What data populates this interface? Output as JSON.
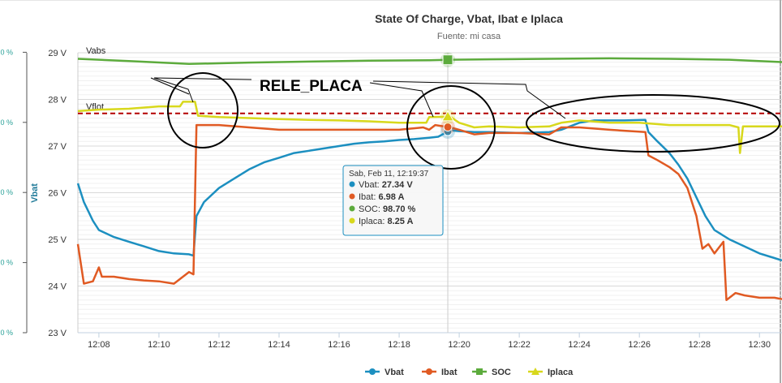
{
  "chart_data": {
    "type": "line",
    "title": "State Of Charge, Vbat, Ibat e Iplaca",
    "subtitle": "Fuente: mi casa",
    "y_axis_title": "Vbat",
    "y_ticks": [
      "23 V",
      "24 V",
      "25 V",
      "26 V",
      "27 V",
      "28 V",
      "29 V"
    ],
    "ylim": [
      23,
      29
    ],
    "secondary_y_ticks": [
      "0 %",
      "0 %",
      "0 %",
      "0 %",
      "0 %",
      "0 %"
    ],
    "x_ticks": [
      "12:08",
      "12:10",
      "12:12",
      "12:14",
      "12:16",
      "12:18",
      "12:20",
      "12:22",
      "12:24",
      "12:26",
      "12:28",
      "12:30"
    ],
    "xlim": [
      7.3,
      30.75
    ],
    "x_unit": "minutes after 12:00",
    "plot_lines": [
      {
        "label": "Vabs",
        "value": 28.9,
        "color": "#555555"
      },
      {
        "label": "Vflot",
        "value": 27.7,
        "color": "#b30000",
        "dashed": true
      }
    ],
    "annotation": "RELE_PLACA",
    "series": [
      {
        "name": "Vbat",
        "color": "#1c8fc0",
        "points": [
          [
            7.3,
            26.2
          ],
          [
            7.5,
            25.8
          ],
          [
            7.8,
            25.4
          ],
          [
            8.0,
            25.2
          ],
          [
            8.5,
            25.05
          ],
          [
            9.0,
            24.95
          ],
          [
            9.5,
            24.85
          ],
          [
            10.0,
            24.75
          ],
          [
            10.5,
            24.7
          ],
          [
            11.0,
            24.68
          ],
          [
            11.15,
            24.65
          ],
          [
            11.25,
            25.5
          ],
          [
            11.5,
            25.8
          ],
          [
            12.0,
            26.1
          ],
          [
            12.5,
            26.3
          ],
          [
            13.0,
            26.5
          ],
          [
            13.5,
            26.65
          ],
          [
            14.0,
            26.75
          ],
          [
            14.5,
            26.85
          ],
          [
            15.0,
            26.9
          ],
          [
            15.5,
            26.95
          ],
          [
            16.0,
            27.0
          ],
          [
            16.5,
            27.05
          ],
          [
            17.0,
            27.08
          ],
          [
            17.5,
            27.1
          ],
          [
            18.0,
            27.13
          ],
          [
            18.5,
            27.15
          ],
          [
            19.0,
            27.18
          ],
          [
            19.3,
            27.2
          ],
          [
            19.7,
            27.34
          ],
          [
            20.0,
            27.32
          ],
          [
            20.5,
            27.3
          ],
          [
            21.0,
            27.3
          ],
          [
            22.0,
            27.28
          ],
          [
            23.0,
            27.3
          ],
          [
            23.4,
            27.35
          ],
          [
            24.0,
            27.5
          ],
          [
            24.5,
            27.55
          ],
          [
            25.0,
            27.55
          ],
          [
            25.5,
            27.55
          ],
          [
            26.2,
            27.56
          ],
          [
            26.3,
            27.3
          ],
          [
            26.6,
            27.1
          ],
          [
            27.0,
            26.85
          ],
          [
            27.3,
            26.6
          ],
          [
            27.6,
            26.3
          ],
          [
            27.9,
            25.9
          ],
          [
            28.2,
            25.5
          ],
          [
            28.5,
            25.2
          ],
          [
            29.0,
            25.0
          ],
          [
            29.5,
            24.85
          ],
          [
            30.0,
            24.7
          ],
          [
            30.5,
            24.6
          ],
          [
            30.75,
            24.55
          ]
        ]
      },
      {
        "name": "Ibat",
        "color": "#e05a23",
        "points": [
          [
            7.3,
            24.9
          ],
          [
            7.5,
            24.05
          ],
          [
            7.8,
            24.1
          ],
          [
            8.0,
            24.4
          ],
          [
            8.1,
            24.2
          ],
          [
            8.5,
            24.2
          ],
          [
            9.0,
            24.15
          ],
          [
            9.5,
            24.12
          ],
          [
            10.0,
            24.1
          ],
          [
            10.5,
            24.05
          ],
          [
            11.0,
            24.3
          ],
          [
            11.15,
            24.25
          ],
          [
            11.25,
            27.45
          ],
          [
            11.5,
            27.45
          ],
          [
            12.0,
            27.45
          ],
          [
            13.0,
            27.4
          ],
          [
            14.0,
            27.35
          ],
          [
            15.0,
            27.35
          ],
          [
            16.0,
            27.35
          ],
          [
            17.0,
            27.35
          ],
          [
            18.0,
            27.35
          ],
          [
            18.8,
            27.4
          ],
          [
            19.0,
            27.35
          ],
          [
            19.2,
            27.45
          ],
          [
            19.7,
            27.4
          ],
          [
            20.0,
            27.35
          ],
          [
            20.5,
            27.25
          ],
          [
            21.0,
            27.28
          ],
          [
            22.0,
            27.28
          ],
          [
            23.0,
            27.25
          ],
          [
            23.4,
            27.4
          ],
          [
            24.0,
            27.4
          ],
          [
            25.0,
            27.35
          ],
          [
            26.2,
            27.3
          ],
          [
            26.3,
            26.8
          ],
          [
            26.6,
            26.7
          ],
          [
            27.0,
            26.55
          ],
          [
            27.3,
            26.4
          ],
          [
            27.6,
            26.1
          ],
          [
            27.9,
            25.5
          ],
          [
            28.1,
            24.8
          ],
          [
            28.3,
            24.9
          ],
          [
            28.5,
            24.7
          ],
          [
            28.8,
            24.95
          ],
          [
            28.9,
            23.7
          ],
          [
            29.2,
            23.85
          ],
          [
            29.5,
            23.8
          ],
          [
            30.0,
            23.75
          ],
          [
            30.5,
            23.75
          ],
          [
            30.75,
            23.72
          ]
        ]
      },
      {
        "name": "SOC",
        "color": "#5cab3c",
        "marker": "square",
        "points": [
          [
            7.3,
            28.87
          ],
          [
            9.0,
            28.82
          ],
          [
            11.0,
            28.76
          ],
          [
            13.0,
            28.79
          ],
          [
            15.0,
            28.81
          ],
          [
            17.0,
            28.83
          ],
          [
            19.0,
            28.84
          ],
          [
            19.7,
            28.85
          ],
          [
            21.0,
            28.86
          ],
          [
            23.0,
            28.87
          ],
          [
            25.0,
            28.88
          ],
          [
            27.0,
            28.87
          ],
          [
            29.0,
            28.85
          ],
          [
            30.75,
            28.8
          ]
        ]
      },
      {
        "name": "Iplaca",
        "color": "#d8d81c",
        "marker": "triangle",
        "points": [
          [
            7.3,
            27.75
          ],
          [
            8.0,
            27.78
          ],
          [
            9.0,
            27.8
          ],
          [
            10.0,
            27.85
          ],
          [
            10.7,
            27.85
          ],
          [
            10.8,
            27.95
          ],
          [
            11.2,
            27.95
          ],
          [
            11.3,
            27.65
          ],
          [
            12.0,
            27.62
          ],
          [
            13.0,
            27.6
          ],
          [
            14.0,
            27.58
          ],
          [
            15.0,
            27.56
          ],
          [
            16.0,
            27.55
          ],
          [
            17.0,
            27.53
          ],
          [
            18.0,
            27.5
          ],
          [
            18.9,
            27.5
          ],
          [
            19.0,
            27.62
          ],
          [
            19.7,
            27.63
          ],
          [
            20.0,
            27.5
          ],
          [
            20.5,
            27.4
          ],
          [
            21.0,
            27.42
          ],
          [
            22.0,
            27.4
          ],
          [
            23.0,
            27.42
          ],
          [
            23.4,
            27.5
          ],
          [
            24.0,
            27.55
          ],
          [
            25.0,
            27.5
          ],
          [
            26.0,
            27.5
          ],
          [
            27.0,
            27.45
          ],
          [
            28.0,
            27.45
          ],
          [
            29.0,
            27.45
          ],
          [
            29.3,
            27.4
          ],
          [
            29.35,
            26.85
          ],
          [
            29.45,
            27.42
          ],
          [
            30.0,
            27.42
          ],
          [
            30.75,
            27.42
          ]
        ]
      }
    ],
    "tooltip": {
      "header": "Sab, Feb 11, 12:19:37",
      "rows": [
        {
          "name": "Vbat",
          "value": "27.34 V",
          "color": "#1c8fc0"
        },
        {
          "name": "Ibat",
          "value": "6.98 A",
          "color": "#e05a23"
        },
        {
          "name": "SOC",
          "value": "98.70 %",
          "color": "#5cab3c"
        },
        {
          "name": "Iplaca",
          "value": "8.25 A",
          "color": "#d8d81c"
        }
      ]
    },
    "hover_x": 19.62,
    "legend": [
      "Vbat",
      "Ibat",
      "SOC",
      "Iplaca"
    ],
    "legend_position": "bottom-center",
    "grid": true
  }
}
